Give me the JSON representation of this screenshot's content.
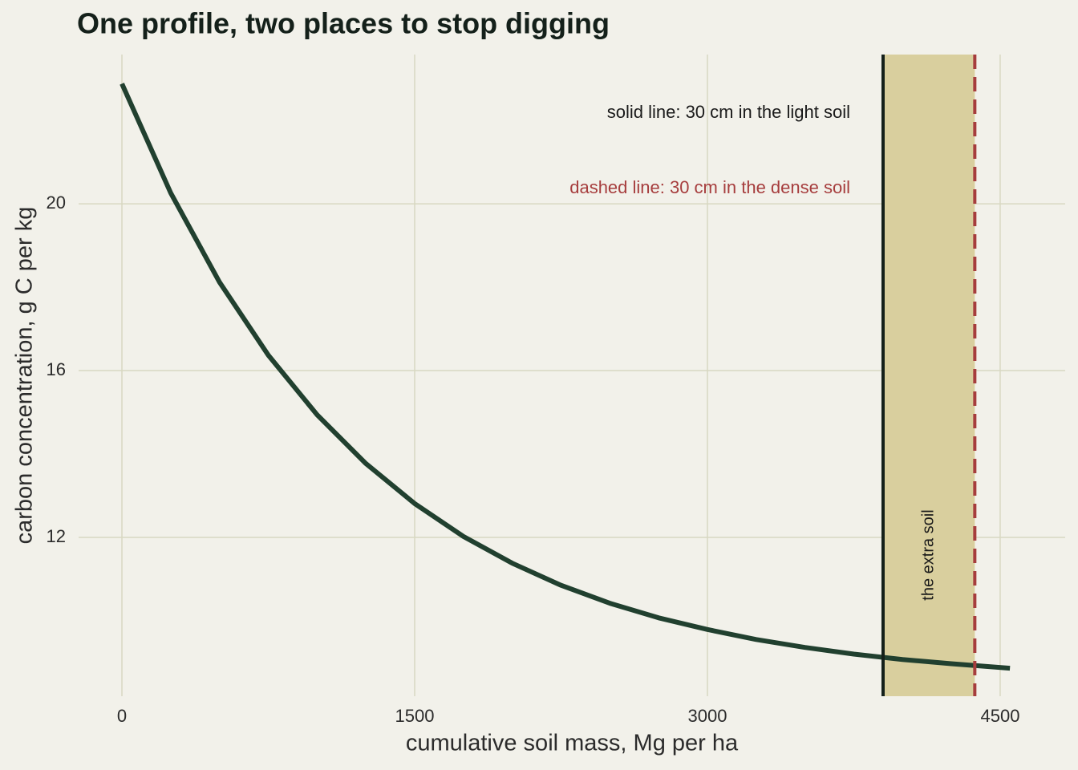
{
  "chart_data": {
    "type": "line",
    "title": "One profile, two places to stop digging",
    "x_label": "cumulative soil mass, Mg per ha",
    "y_label": "carbon concentration, g C per kg",
    "x": [
      0,
      250,
      500,
      750,
      1000,
      1250,
      1500,
      1750,
      2000,
      2250,
      2500,
      2750,
      3000,
      3250,
      3500,
      3750,
      4000,
      4250,
      4550
    ],
    "series": [
      {
        "color": "#21402f",
        "values": [
          22.88,
          20.26,
          18.12,
          16.37,
          14.94,
          13.77,
          12.81,
          12.02,
          11.38,
          10.85,
          10.42,
          10.07,
          9.79,
          9.55,
          9.36,
          9.2,
          9.07,
          8.97,
          8.86
        ]
      }
    ],
    "xlim": [
      -222,
      4833
    ],
    "ylim": [
      8.19,
      23.58
    ],
    "xticks": [
      0,
      1500,
      3000,
      4500
    ],
    "yticks": [
      12,
      16,
      20
    ],
    "grid": true,
    "vlines": [
      {
        "x": 3900,
        "color": "#14201a",
        "style": "solid"
      },
      {
        "x": 4370,
        "color": "#a63d3d",
        "style": "dashed"
      }
    ],
    "band": {
      "x": [
        3900,
        4370
      ],
      "color": "#d9cf9e",
      "label": "the extra soil"
    },
    "annotations": [
      {
        "text": "solid line: 30 cm in the light soil",
        "color": "#1a1a1a"
      },
      {
        "text": "dashed line: 30 cm in the dense soil",
        "color": "#a63d3d"
      }
    ]
  }
}
